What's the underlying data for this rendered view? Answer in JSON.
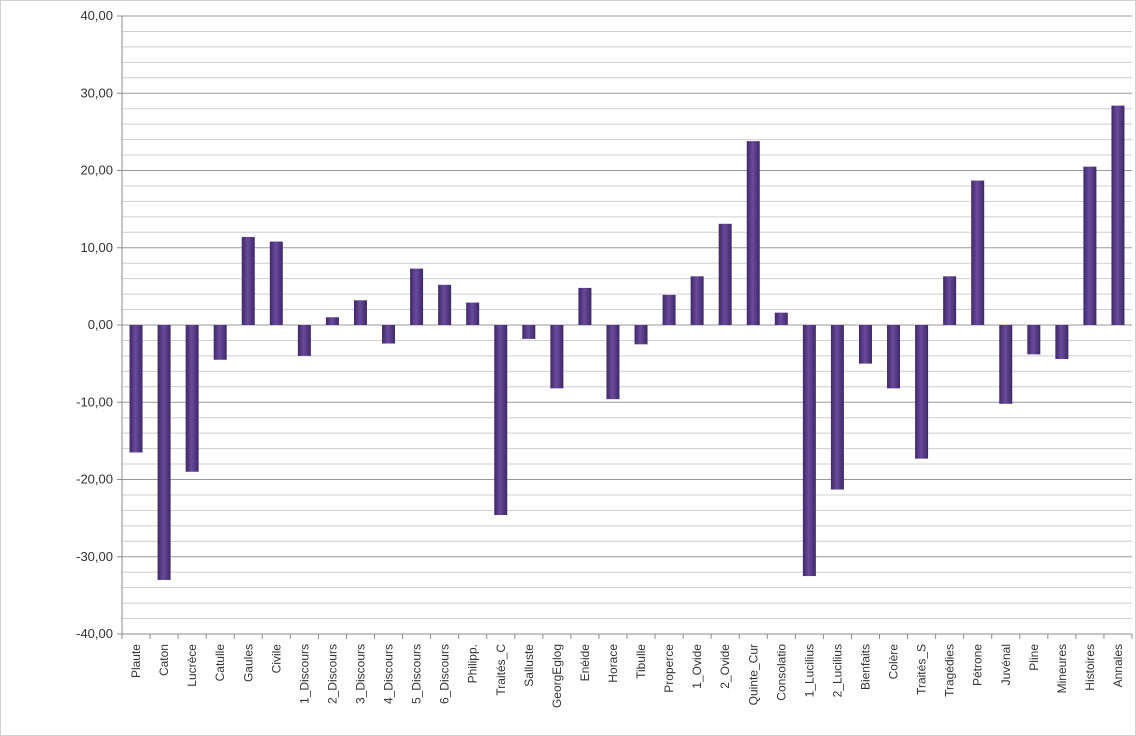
{
  "chart_data": {
    "type": "bar",
    "title": "",
    "xlabel": "",
    "ylabel": "",
    "ylim": [
      -40,
      40
    ],
    "y_major_step": 10,
    "y_minor_step": 2,
    "y_tick_labels": [
      "-40,00",
      "-30,00",
      "-20,00",
      "-10,00",
      "0,00",
      "10,00",
      "20,00",
      "30,00",
      "40,00"
    ],
    "grid": true,
    "legend": "none",
    "bar_color": "#6a4a9c",
    "bar_color_dark": "#3e2868",
    "categories": [
      "Plaute",
      "Caton",
      "Lucrèce",
      "Catulle",
      "Gaules",
      "Civile",
      "1_Discours",
      "2_Discours",
      "3_Discours",
      "4_Discours",
      "5_Discours",
      "6_Discours",
      "Philipp.",
      "Traités_C",
      "Salluste",
      "GeorgEglog",
      "Enéide",
      "Horace",
      "Tibulle",
      "Properce",
      "1_Ovide",
      "2_Ovide",
      "Quinte_Cur",
      "Consolatio",
      "1_Lucilius",
      "2_Lucilius",
      "Bienfaits",
      "Colère",
      "Traités_S",
      "Tragédies",
      "Pétrone",
      "Juvénal",
      "Pline",
      "Mineures",
      "Histoires",
      "Annales"
    ],
    "values": [
      -16.5,
      -33.0,
      -19.0,
      -4.5,
      11.4,
      10.8,
      -4.0,
      1.0,
      3.2,
      -2.4,
      7.3,
      5.2,
      2.9,
      -24.6,
      -1.8,
      -8.2,
      4.8,
      -9.6,
      -2.5,
      3.9,
      6.3,
      13.1,
      23.8,
      1.6,
      -32.5,
      -21.3,
      -5.0,
      -8.2,
      -17.3,
      6.3,
      18.7,
      -10.2,
      -3.8,
      -4.4,
      20.5,
      28.4
    ]
  }
}
